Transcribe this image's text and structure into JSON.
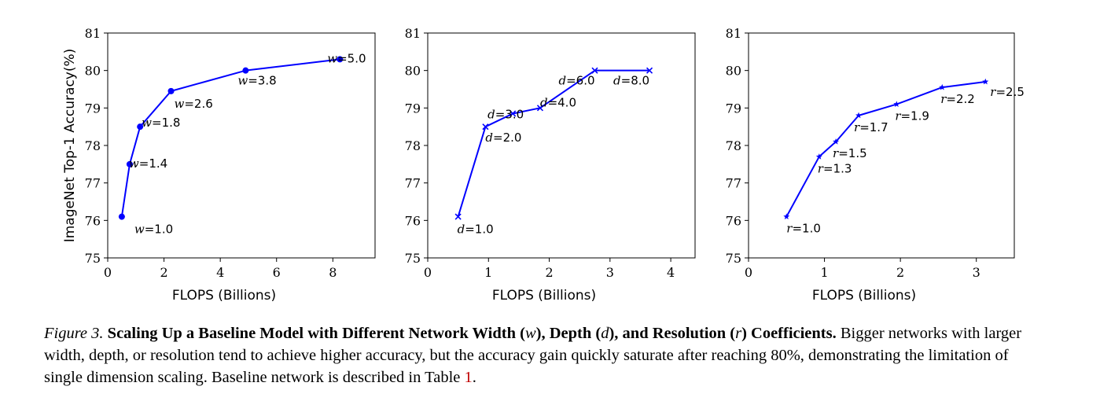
{
  "chart_data": [
    {
      "type": "line",
      "xlabel": "FLOPS (Billions)",
      "ylabel": "ImageNet Top-1 Accuracy(%)",
      "xlim": [
        0,
        9.5
      ],
      "ylim": [
        75,
        81
      ],
      "xticks": [
        0,
        2,
        4,
        6,
        8
      ],
      "yticks": [
        75,
        76,
        77,
        78,
        79,
        80,
        81
      ],
      "marker": "circle",
      "color": "#0000ff",
      "series": [
        {
          "x": [
            0.5,
            0.78,
            1.15,
            2.25,
            4.9,
            8.25
          ],
          "y": [
            76.1,
            77.5,
            78.5,
            79.45,
            80.0,
            80.3
          ],
          "labels": [
            {
              "var": "w",
              "text": "=1.0"
            },
            {
              "var": "w",
              "text": "=1.4"
            },
            {
              "var": "w",
              "text": "=1.8"
            },
            {
              "var": "w",
              "text": "=2.6"
            },
            {
              "var": "w",
              "text": "=3.8"
            },
            {
              "var": "w",
              "text": "=5.0"
            }
          ]
        }
      ]
    },
    {
      "type": "line",
      "xlabel": "FLOPS (Billions)",
      "ylabel": "",
      "xlim": [
        0,
        4.4
      ],
      "ylim": [
        75,
        81
      ],
      "xticks": [
        0,
        1,
        2,
        3,
        4
      ],
      "yticks": [
        75,
        76,
        77,
        78,
        79,
        80,
        81
      ],
      "marker": "x",
      "color": "#0000ff",
      "series": [
        {
          "x": [
            0.5,
            0.95,
            1.4,
            1.85,
            2.75,
            3.65
          ],
          "y": [
            76.1,
            78.5,
            78.85,
            79.0,
            80.0,
            80.0
          ],
          "labels": [
            {
              "var": "d",
              "text": "=1.0"
            },
            {
              "var": "d",
              "text": "=2.0"
            },
            {
              "var": "d",
              "text": "=3.0"
            },
            {
              "var": "d",
              "text": "=4.0"
            },
            {
              "var": "d",
              "text": "=6.0"
            },
            {
              "var": "d",
              "text": "=8.0"
            }
          ]
        }
      ]
    },
    {
      "type": "line",
      "xlabel": "FLOPS (Billions)",
      "ylabel": "",
      "xlim": [
        0,
        3.5
      ],
      "ylim": [
        75,
        81
      ],
      "xticks": [
        0,
        1,
        2,
        3
      ],
      "yticks": [
        75,
        76,
        77,
        78,
        79,
        80,
        81
      ],
      "marker": "star",
      "color": "#0000ff",
      "series": [
        {
          "x": [
            0.5,
            0.93,
            1.15,
            1.45,
            1.95,
            2.55,
            3.12
          ],
          "y": [
            76.1,
            77.7,
            78.1,
            78.8,
            79.1,
            79.55,
            79.7
          ],
          "labels": [
            {
              "var": "r",
              "text": "=1.0"
            },
            {
              "var": "r",
              "text": "=1.3"
            },
            {
              "var": "r",
              "text": "=1.5"
            },
            {
              "var": "r",
              "text": "=1.7"
            },
            {
              "var": "r",
              "text": "=1.9"
            },
            {
              "var": "r",
              "text": "=2.2"
            },
            {
              "var": "r",
              "text": "=2.5"
            }
          ]
        }
      ]
    }
  ],
  "caption": {
    "figure_label": "Figure 3.",
    "bold_1": "Scaling Up a Baseline Model with Different Network Width (",
    "var_w": "w",
    "bold_2": "), Depth (",
    "var_d": "d",
    "bold_3": "), and Resolution (",
    "var_r": "r",
    "bold_4": ") Coefficients.",
    "body": "Bigger networks with larger width, depth, or resolution tend to achieve higher accuracy, but the accuracy gain quickly saturate after reaching 80%, demonstrating the limitation of single dimension scaling. Baseline network is described in Table ",
    "table_ref": "1",
    "end": "."
  }
}
